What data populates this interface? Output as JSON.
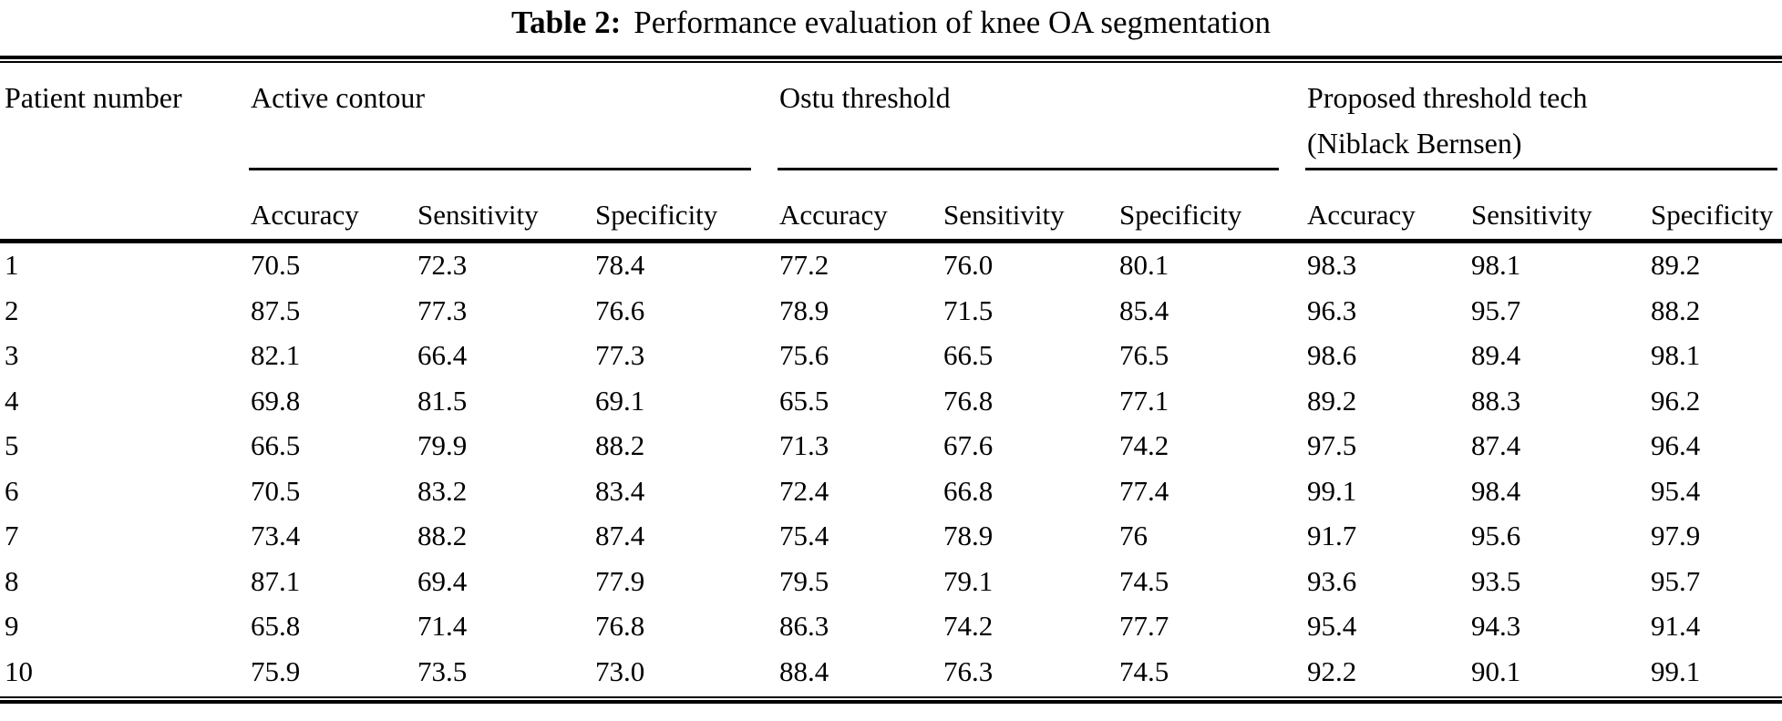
{
  "title": {
    "label": "Table 2:",
    "text": "Performance evaluation of knee OA segmentation"
  },
  "colors": {
    "background": "#ffffff",
    "text": "#000000",
    "rule": "#000000"
  },
  "table": {
    "row_header": "Patient number",
    "groups": [
      {
        "name_lines": [
          "Active contour"
        ],
        "subcolumns": [
          "Accuracy",
          "Sensitivity",
          "Specificity"
        ]
      },
      {
        "name_lines": [
          "Ostu threshold"
        ],
        "subcolumns": [
          "Accuracy",
          "Sensitivity",
          "Specificity"
        ]
      },
      {
        "name_lines": [
          "Proposed threshold tech",
          "(Niblack Bernsen)"
        ],
        "subcolumns": [
          "Accuracy",
          "Sensitivity",
          "Specificity"
        ]
      }
    ],
    "rows": [
      {
        "patient": "1",
        "values": [
          "70.5",
          "72.3",
          "78.4",
          "77.2",
          "76.0",
          "80.1",
          "98.3",
          "98.1",
          "89.2"
        ]
      },
      {
        "patient": "2",
        "values": [
          "87.5",
          "77.3",
          "76.6",
          "78.9",
          "71.5",
          "85.4",
          "96.3",
          "95.7",
          "88.2"
        ]
      },
      {
        "patient": "3",
        "values": [
          "82.1",
          "66.4",
          "77.3",
          "75.6",
          "66.5",
          "76.5",
          "98.6",
          "89.4",
          "98.1"
        ]
      },
      {
        "patient": "4",
        "values": [
          "69.8",
          "81.5",
          "69.1",
          "65.5",
          "76.8",
          "77.1",
          "89.2",
          "88.3",
          "96.2"
        ]
      },
      {
        "patient": "5",
        "values": [
          "66.5",
          "79.9",
          "88.2",
          "71.3",
          "67.6",
          "74.2",
          "97.5",
          "87.4",
          "96.4"
        ]
      },
      {
        "patient": "6",
        "values": [
          "70.5",
          "83.2",
          "83.4",
          "72.4",
          "66.8",
          "77.4",
          "99.1",
          "98.4",
          "95.4"
        ]
      },
      {
        "patient": "7",
        "values": [
          "73.4",
          "88.2",
          "87.4",
          "75.4",
          "78.9",
          "76",
          "91.7",
          "95.6",
          "97.9"
        ]
      },
      {
        "patient": "8",
        "values": [
          "87.1",
          "69.4",
          "77.9",
          "79.5",
          "79.1",
          "74.5",
          "93.6",
          "93.5",
          "95.7"
        ]
      },
      {
        "patient": "9",
        "values": [
          "65.8",
          "71.4",
          "76.8",
          "86.3",
          "74.2",
          "77.7",
          "95.4",
          "94.3",
          "91.4"
        ]
      },
      {
        "patient": "10",
        "values": [
          "75.9",
          "73.5",
          "73.0",
          "88.4",
          "76.3",
          "74.5",
          "92.2",
          "90.1",
          "99.1"
        ]
      }
    ]
  }
}
